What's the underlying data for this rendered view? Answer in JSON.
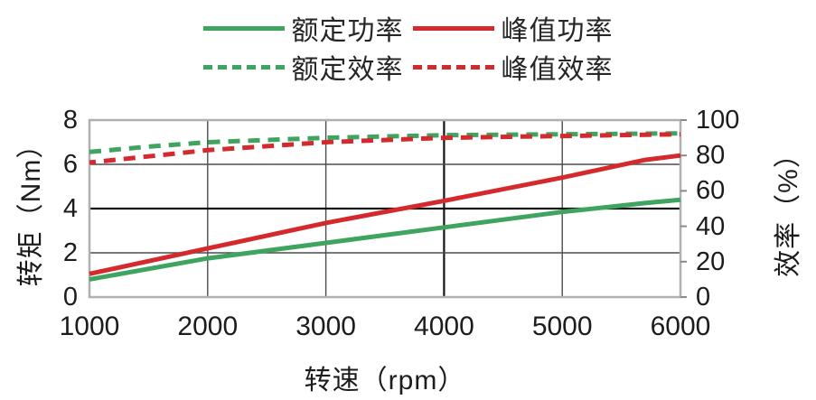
{
  "chart_data": {
    "type": "line",
    "title": "",
    "x_label": "转速（rpm）",
    "y_left_label": "转矩（Nm）",
    "y_right_label": "效率（%）",
    "x_range": [
      1000,
      6000
    ],
    "x_ticks": [
      1000,
      2000,
      3000,
      4000,
      5000,
      6000
    ],
    "y_left_range": [
      0,
      8
    ],
    "y_left_ticks": [
      0,
      2,
      4,
      6,
      8
    ],
    "y_right_range": [
      0,
      100
    ],
    "y_right_ticks": [
      0,
      20,
      40,
      60,
      80,
      100
    ],
    "grid": true,
    "legend_position": "top-center",
    "colors": {
      "green": "#3fa45f",
      "red": "#d42a2e",
      "grid": "#4d4d4d",
      "grid_emphasis": "#141414",
      "border": "#b0b0b0"
    },
    "series": [
      {
        "name": "额定功率",
        "color": "#3fa45f",
        "style": "solid",
        "axis": "left",
        "points": [
          [
            1000,
            0.8
          ],
          [
            2000,
            1.75
          ],
          [
            3000,
            2.45
          ],
          [
            4000,
            3.15
          ],
          [
            5000,
            3.85
          ],
          [
            5700,
            4.25
          ],
          [
            6000,
            4.4
          ]
        ]
      },
      {
        "name": "峰值功率",
        "color": "#d42a2e",
        "style": "solid",
        "axis": "left",
        "points": [
          [
            1000,
            1.05
          ],
          [
            2000,
            2.2
          ],
          [
            3000,
            3.35
          ],
          [
            4000,
            4.35
          ],
          [
            5000,
            5.4
          ],
          [
            5700,
            6.2
          ],
          [
            6000,
            6.4
          ]
        ]
      },
      {
        "name": "额定效率",
        "color": "#3fa45f",
        "style": "dashed",
        "axis": "right",
        "points": [
          [
            1000,
            82
          ],
          [
            1500,
            85
          ],
          [
            2000,
            87.5
          ],
          [
            3000,
            90
          ],
          [
            4000,
            91.5
          ],
          [
            5000,
            92
          ],
          [
            6000,
            92.5
          ]
        ]
      },
      {
        "name": "峰值效率",
        "color": "#d42a2e",
        "style": "dashed",
        "axis": "right",
        "points": [
          [
            1000,
            76
          ],
          [
            1500,
            79.5
          ],
          [
            2000,
            83
          ],
          [
            3000,
            87.5
          ],
          [
            4000,
            90
          ],
          [
            5000,
            91
          ],
          [
            6000,
            92
          ]
        ]
      }
    ]
  }
}
